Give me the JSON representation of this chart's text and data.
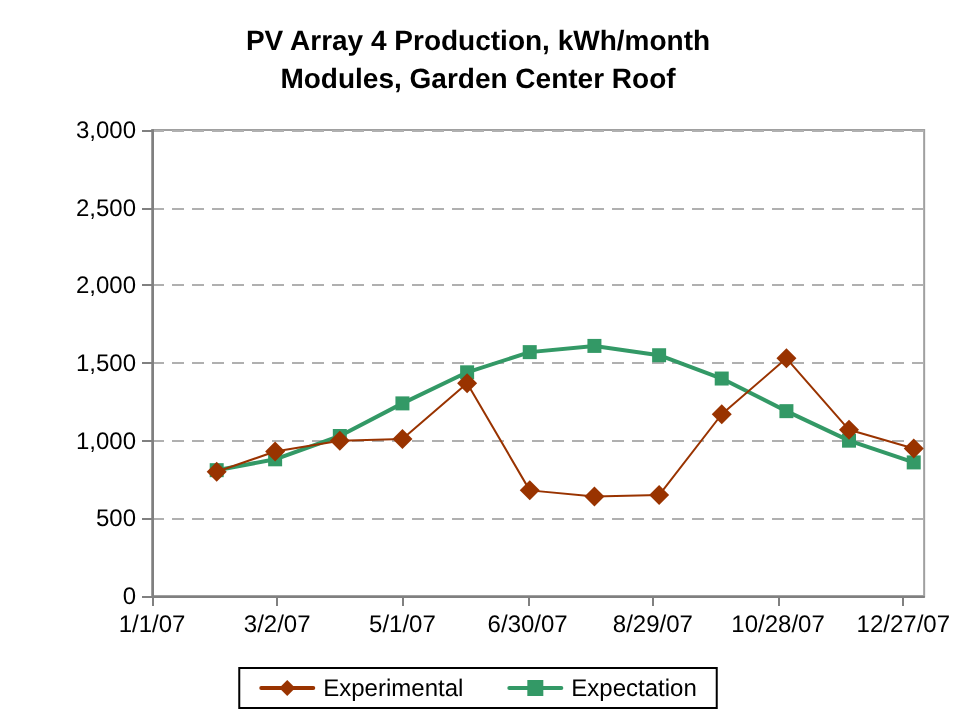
{
  "chart_data": {
    "type": "line",
    "title": "PV Array 4 Production, kWh/month",
    "subtitle": "Modules, Garden Center Roof",
    "x": [
      "2007-02-01",
      "2007-03-01",
      "2007-04-01",
      "2007-05-01",
      "2007-06-01",
      "2007-07-01",
      "2007-08-01",
      "2007-09-01",
      "2007-10-01",
      "2007-11-01",
      "2007-12-01",
      "2008-01-01"
    ],
    "series": [
      {
        "name": "Experimental",
        "color": "#993300",
        "marker": "diamond",
        "values": [
          800,
          930,
          1000,
          1010,
          1370,
          680,
          640,
          650,
          1170,
          1530,
          1070,
          950
        ]
      },
      {
        "name": "Expectation",
        "color": "#339966",
        "marker": "square",
        "values": [
          810,
          880,
          1030,
          1240,
          1440,
          1570,
          1610,
          1550,
          1400,
          1190,
          1000,
          860
        ]
      }
    ],
    "xlim": [
      "2007-01-01",
      "2008-01-06"
    ],
    "xticks": [
      {
        "value": "2007-01-01",
        "label": "1/1/07"
      },
      {
        "value": "2007-03-02",
        "label": "3/2/07"
      },
      {
        "value": "2007-05-01",
        "label": "5/1/07"
      },
      {
        "value": "2007-06-30",
        "label": "6/30/07"
      },
      {
        "value": "2007-08-29",
        "label": "8/29/07"
      },
      {
        "value": "2007-10-28",
        "label": "10/28/07"
      },
      {
        "value": "2007-12-27",
        "label": "12/27/07"
      }
    ],
    "ylim": [
      0,
      3000
    ],
    "yticks": [
      {
        "value": 0,
        "label": "0"
      },
      {
        "value": 500,
        "label": "500"
      },
      {
        "value": 1000,
        "label": "1,000"
      },
      {
        "value": 1500,
        "label": "1,500"
      },
      {
        "value": 2000,
        "label": "2,000"
      },
      {
        "value": 2500,
        "label": "2,500"
      },
      {
        "value": 3000,
        "label": "3,000"
      }
    ],
    "grid": "y",
    "legend": "bottom",
    "line_style": "solid"
  }
}
